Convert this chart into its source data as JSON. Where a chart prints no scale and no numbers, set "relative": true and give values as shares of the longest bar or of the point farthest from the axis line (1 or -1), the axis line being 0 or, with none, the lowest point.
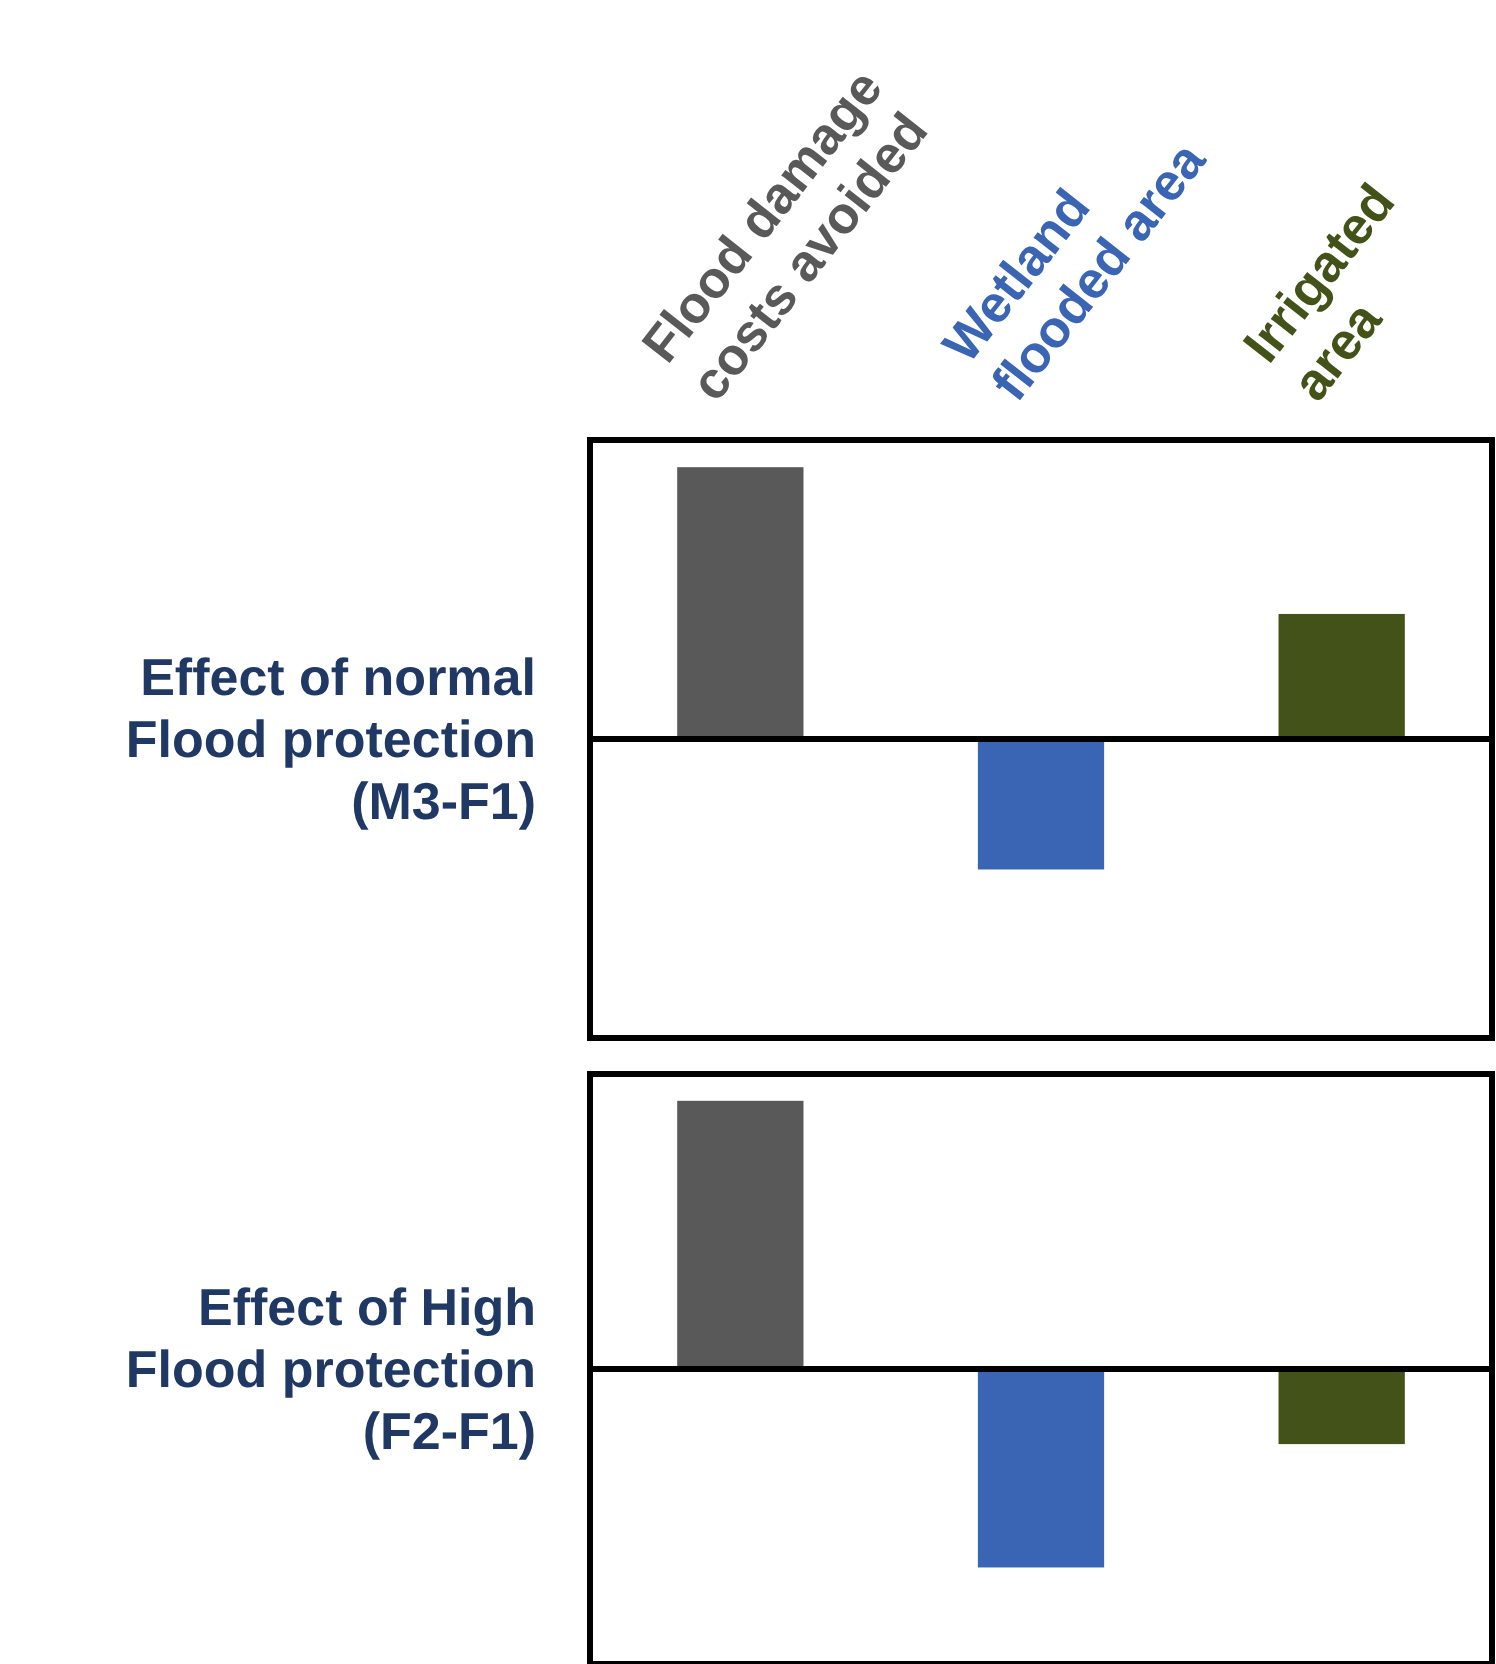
{
  "chart_data": [
    {
      "type": "bar",
      "title": "Effect of normal\nFlood protection\n(M3-F1)",
      "relative": true,
      "tick_labels": "x",
      "categories": [
        "Flood damage\ncosts avoided",
        "Wetland\nflooded area",
        "Irrigated\narea"
      ],
      "values": [
        1,
        -0.48,
        0.46
      ],
      "colors": [
        "#595959",
        "#3a64b4",
        "#435219"
      ]
    },
    {
      "type": "bar",
      "title": "Effect of High\nFlood protection\n(F2-F1)",
      "relative": true,
      "tick_labels": false,
      "categories": [
        null,
        null,
        null
      ],
      "values": [
        1,
        -0.74,
        -0.28
      ],
      "colors": [
        "#595959",
        "#3a64b4",
        "#435219"
      ]
    }
  ]
}
